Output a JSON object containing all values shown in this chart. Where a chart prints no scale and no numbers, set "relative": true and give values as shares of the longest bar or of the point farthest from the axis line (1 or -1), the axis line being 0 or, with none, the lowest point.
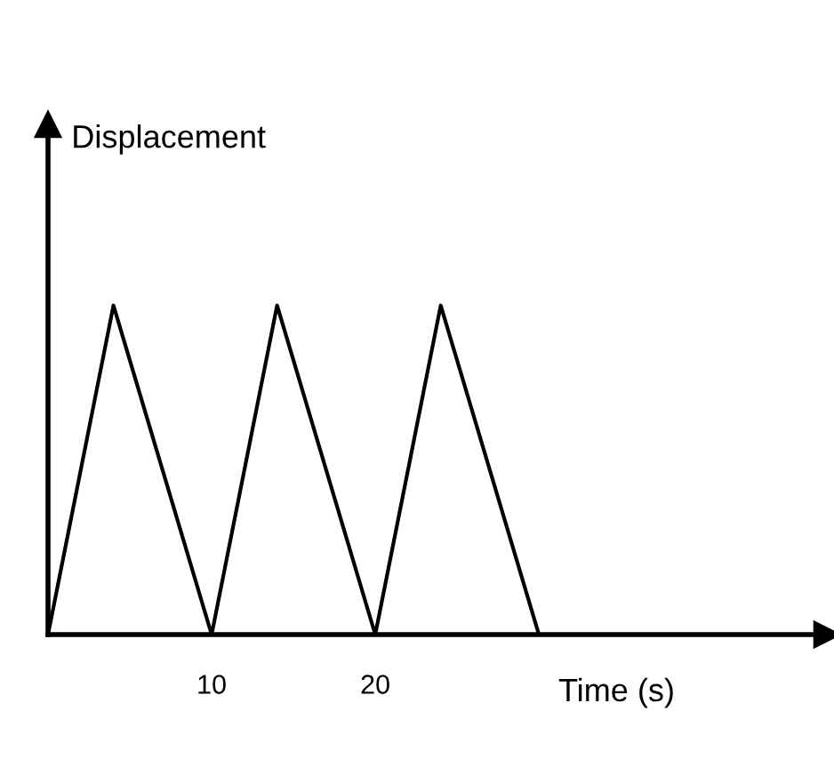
{
  "chart_data": {
    "type": "line",
    "xlabel": "Time (s)",
    "ylabel": "Displacement",
    "relative": true,
    "x": [
      0,
      4,
      10,
      14,
      20,
      24,
      30
    ],
    "values": [
      0,
      1,
      0,
      1,
      0,
      1,
      0
    ],
    "color": "#000000",
    "xlim": [
      0,
      47.6
    ],
    "xticks": [
      10,
      20
    ]
  }
}
